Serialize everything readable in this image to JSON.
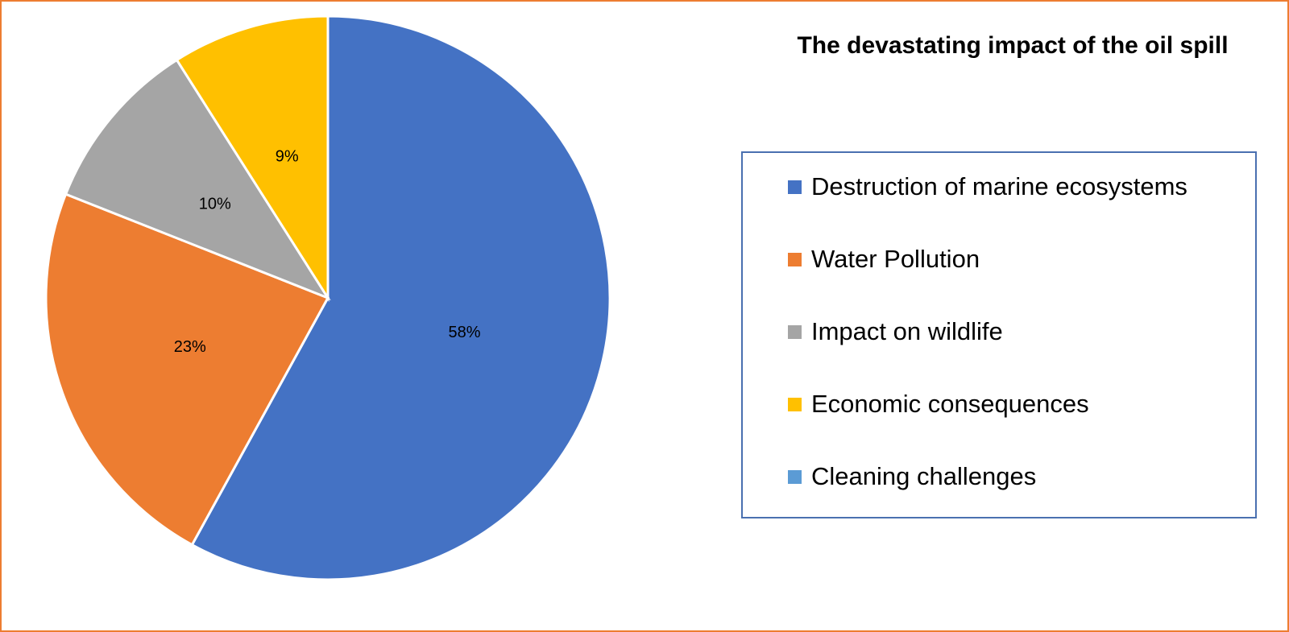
{
  "chart_data": {
    "type": "pie",
    "title": "The devastating impact of the oil spill",
    "categories": [
      "Destruction of marine ecosystems",
      "Water Pollution",
      "Impact on wildlife",
      "Economic consequences",
      "Cleaning challenges"
    ],
    "values": [
      58,
      23,
      10,
      9,
      0
    ],
    "labels": [
      "58%",
      "23%",
      "10%",
      "9%",
      ""
    ],
    "colors": [
      "#4472C4",
      "#ED7D31",
      "#A5A5A5",
      "#FFC000",
      "#5B9BD5"
    ],
    "legend_position": "right",
    "start_angle": "12 o'clock, clockwise"
  },
  "frame": {
    "border_color": "#ED7D31",
    "legend_border_color": "#4A70B0"
  }
}
